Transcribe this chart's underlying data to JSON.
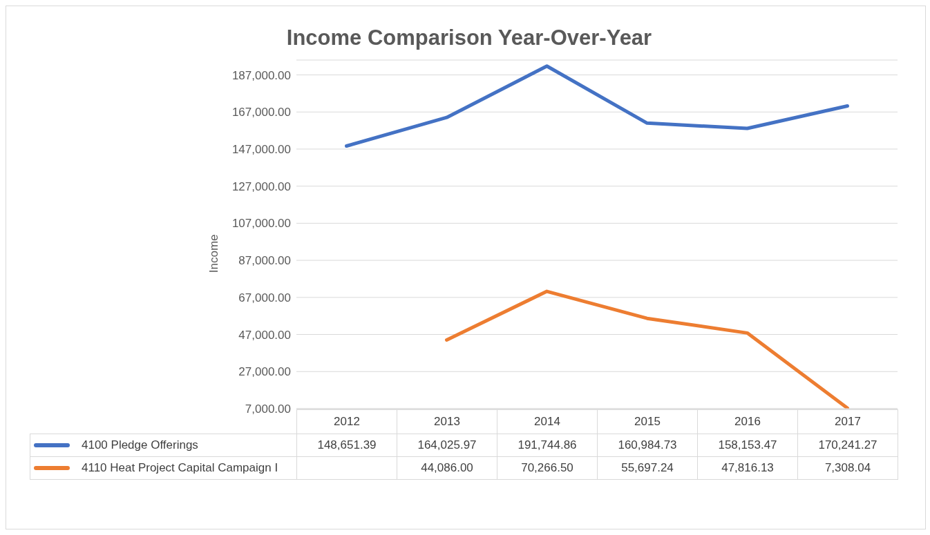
{
  "chart_data": {
    "type": "line",
    "title": "Income Comparison Year-Over-Year",
    "ylabel": "Income",
    "categories": [
      "2012",
      "2013",
      "2014",
      "2015",
      "2016",
      "2017"
    ],
    "series": [
      {
        "name": "4100 Pledge Offerings",
        "color": "#4472c4",
        "values": [
          148651.39,
          164025.97,
          191744.86,
          160984.73,
          158153.47,
          170241.27
        ],
        "value_labels": [
          "148,651.39",
          "164,025.97",
          "191,744.86",
          "160,984.73",
          "158,153.47",
          "170,241.27"
        ]
      },
      {
        "name": "4110 Heat Project Capital Campaign I",
        "color": "#ed7d31",
        "values": [
          null,
          44086.0,
          70266.5,
          55697.24,
          47816.13,
          7308.04
        ],
        "value_labels": [
          null,
          "44,086.00",
          "70,266.50",
          "55,697.24",
          "47,816.13",
          "7,308.04"
        ]
      }
    ],
    "ylim": [
      7000,
      195000
    ],
    "yticks": [
      {
        "value": 7000,
        "label": "7,000.00"
      },
      {
        "value": 27000,
        "label": "27,000.00"
      },
      {
        "value": 47000,
        "label": "47,000.00"
      },
      {
        "value": 67000,
        "label": "67,000.00"
      },
      {
        "value": 87000,
        "label": "87,000.00"
      },
      {
        "value": 107000,
        "label": "107,000.00"
      },
      {
        "value": 127000,
        "label": "127,000.00"
      },
      {
        "value": 147000,
        "label": "147,000.00"
      },
      {
        "value": 167000,
        "label": "167,000.00"
      },
      {
        "value": 187000,
        "label": "187,000.00"
      }
    ],
    "grid": "y",
    "legend": "bottom",
    "marker": "none",
    "line_style": "solid"
  }
}
